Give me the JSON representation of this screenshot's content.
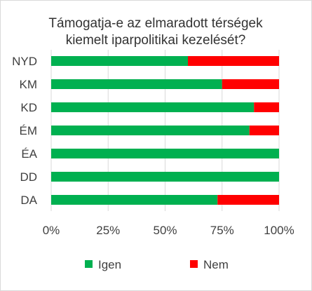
{
  "chart_data": {
    "type": "bar",
    "orientation": "horizontal",
    "stacked": "100%",
    "title_lines": [
      "Támogatja-e az elmaradott térségek",
      "kiemelt iparpolitikai kezelését?"
    ],
    "categories": [
      "NYD",
      "KM",
      "KD",
      "ÉM",
      "ÉA",
      "DD",
      "DA"
    ],
    "series": [
      {
        "name": "Igen",
        "color": "#00b050",
        "values": [
          60,
          75,
          89,
          87,
          100,
          100,
          73
        ]
      },
      {
        "name": "Nem",
        "color": "#ff0000",
        "values": [
          40,
          25,
          11,
          13,
          0,
          0,
          27
        ]
      }
    ],
    "xlim": [
      0,
      100
    ],
    "x_ticks": [
      "0%",
      "25%",
      "50%",
      "75%",
      "100%"
    ],
    "grid": true,
    "legend_position": "bottom"
  }
}
